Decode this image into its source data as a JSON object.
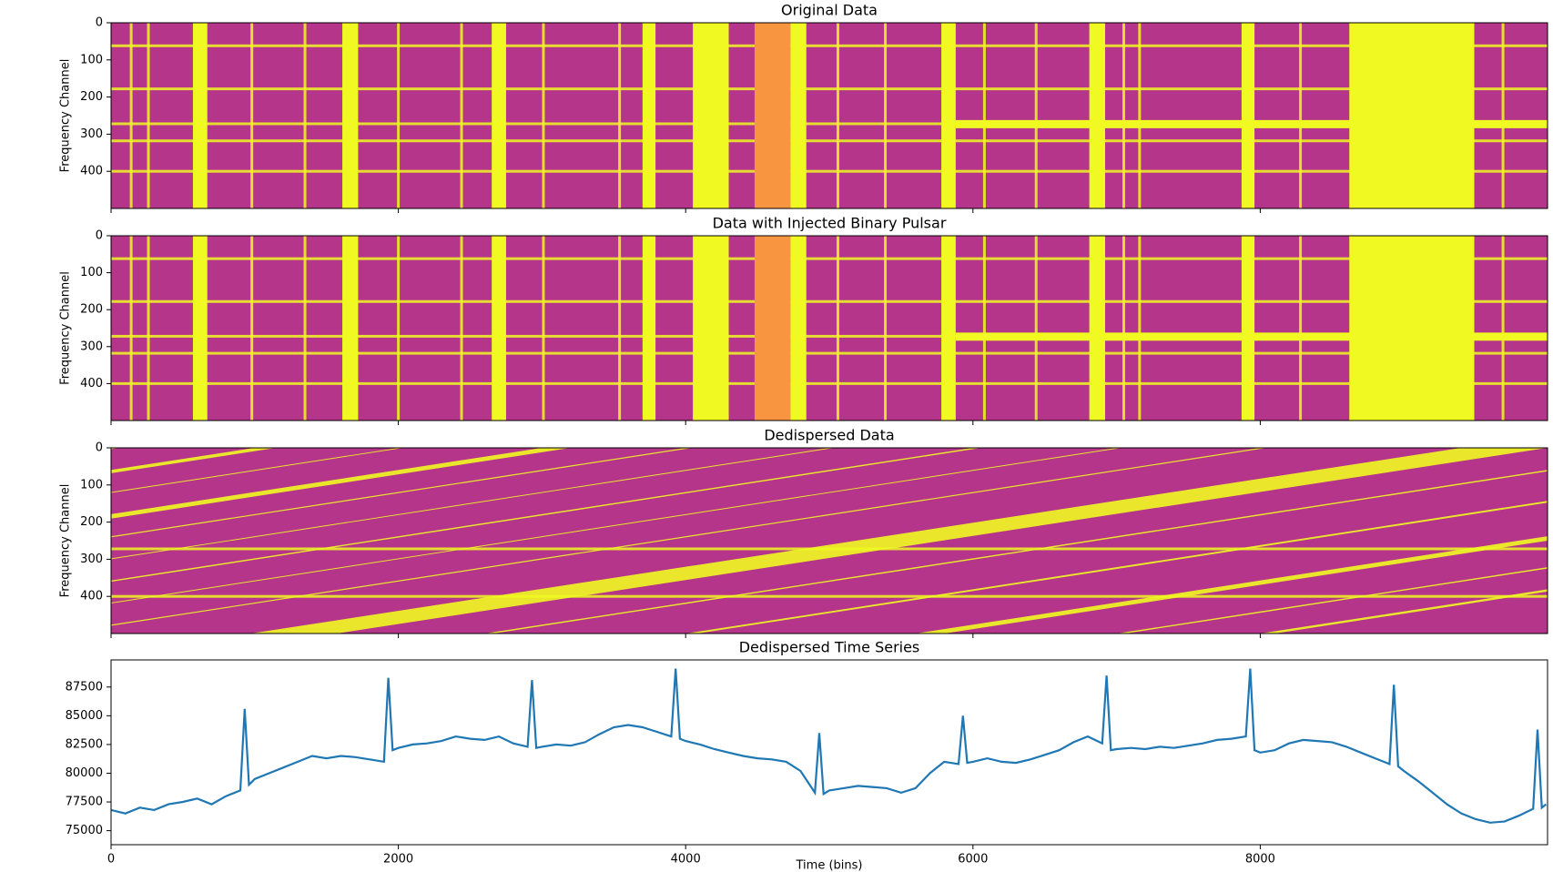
{
  "chart_data": [
    {
      "type": "heatmap",
      "title": "Original Data",
      "ylabel": "Frequency Channel",
      "xlim": [
        0,
        10000
      ],
      "ylim": [
        500,
        0
      ],
      "xticks": [
        0,
        2000,
        4000,
        6000,
        8000
      ],
      "yticks": [
        0,
        100,
        200,
        300,
        400
      ],
      "background": "#b5358a",
      "color": "#f0f921",
      "accent": "#f89540",
      "bands": [
        [
          570,
          670
        ],
        [
          1610,
          1720
        ],
        [
          2650,
          2750
        ],
        [
          3700,
          3790
        ],
        [
          4050,
          4300
        ],
        [
          4730,
          4840
        ],
        [
          5780,
          5880
        ],
        [
          6810,
          6920
        ],
        [
          7870,
          7960
        ],
        [
          8620,
          9490
        ]
      ],
      "accent_bands": [
        [
          4480,
          4730
        ]
      ],
      "lines_x": [
        140,
        260,
        980,
        1350,
        2000,
        2440,
        3010,
        3540,
        5060,
        5390,
        6080,
        6440,
        7050,
        7160,
        8280,
        9690
      ],
      "lines_y": [
        62,
        178,
        272,
        318,
        400
      ],
      "hbands": [
        [
          5880,
          10000,
          262,
          284
        ]
      ]
    },
    {
      "type": "heatmap",
      "title": "Data with Injected Binary Pulsar",
      "ylabel": "Frequency Channel",
      "xlim": [
        0,
        10000
      ],
      "ylim": [
        500,
        0
      ],
      "xticks": [
        0,
        2000,
        4000,
        6000,
        8000
      ],
      "yticks": [
        0,
        100,
        200,
        300,
        400
      ],
      "background": "#b5358a",
      "color": "#f0f921",
      "accent": "#f89540",
      "bands": [
        [
          570,
          670
        ],
        [
          1610,
          1720
        ],
        [
          2650,
          2750
        ],
        [
          3700,
          3790
        ],
        [
          4050,
          4300
        ],
        [
          4730,
          4840
        ],
        [
          5780,
          5880
        ],
        [
          6810,
          6920
        ],
        [
          7870,
          7960
        ],
        [
          8620,
          9490
        ]
      ],
      "accent_bands": [
        [
          4480,
          4730
        ]
      ],
      "lines_x": [
        140,
        260,
        980,
        1350,
        2000,
        2440,
        3010,
        3540,
        5060,
        5390,
        6080,
        6440,
        7050,
        7160,
        8280,
        9690
      ],
      "lines_y": [
        62,
        178,
        272,
        318,
        400
      ],
      "hbands": [
        [
          5880,
          10000,
          262,
          284
        ]
      ]
    },
    {
      "type": "sweep",
      "title": "Dedispersed Data",
      "ylabel": "Frequency Channel",
      "xlim": [
        0,
        10000
      ],
      "ylim": [
        500,
        0
      ],
      "xticks": [
        0,
        2000,
        4000,
        6000,
        8000
      ],
      "yticks": [
        0,
        100,
        200,
        300,
        400
      ],
      "background": "#b5358a",
      "color": "#f0f921",
      "sweeps": [
        [
          -8400,
          0,
          60
        ],
        [
          -7400,
          1000,
          150
        ],
        [
          -6400,
          2000,
          40
        ],
        [
          -5400,
          3000,
          200
        ],
        [
          -4400,
          4000,
          50
        ],
        [
          -3400,
          5000,
          40
        ],
        [
          -2400,
          6000,
          60
        ],
        [
          -1400,
          7000,
          40
        ],
        [
          -400,
          8000,
          50
        ],
        [
          970,
          9400,
          600
        ],
        [
          2600,
          11000,
          60
        ],
        [
          4000,
          12400,
          80
        ],
        [
          5600,
          14000,
          200
        ],
        [
          7000,
          15400,
          60
        ],
        [
          8000,
          16400,
          100
        ]
      ],
      "lines_y": [
        272,
        400
      ]
    },
    {
      "type": "line",
      "title": "Dedispersed Time Series",
      "xlabel": "Time (bins)",
      "xlim": [
        0,
        10000
      ],
      "ylim": [
        73780,
        89860
      ],
      "xticks": [
        0,
        2000,
        4000,
        6000,
        8000
      ],
      "yticks": [
        75000,
        77500,
        80000,
        82500,
        85000,
        87500
      ],
      "color": "#1f77b4",
      "x": [
        0,
        100,
        200,
        300,
        400,
        500,
        600,
        700,
        800,
        900,
        930,
        960,
        1000,
        1100,
        1200,
        1300,
        1400,
        1500,
        1600,
        1700,
        1800,
        1900,
        1930,
        1960,
        2000,
        2100,
        2200,
        2300,
        2400,
        2500,
        2600,
        2700,
        2800,
        2900,
        2930,
        2960,
        3000,
        3100,
        3200,
        3300,
        3400,
        3500,
        3600,
        3700,
        3800,
        3900,
        3930,
        3960,
        4000,
        4100,
        4200,
        4300,
        4400,
        4500,
        4600,
        4700,
        4800,
        4900,
        4930,
        4960,
        5000,
        5100,
        5200,
        5300,
        5400,
        5500,
        5600,
        5700,
        5800,
        5900,
        5930,
        5960,
        6000,
        6100,
        6200,
        6300,
        6400,
        6500,
        6600,
        6700,
        6800,
        6900,
        6930,
        6960,
        7000,
        7100,
        7200,
        7300,
        7400,
        7500,
        7600,
        7700,
        7800,
        7900,
        7930,
        7960,
        8000,
        8100,
        8200,
        8300,
        8400,
        8500,
        8600,
        8700,
        8800,
        8900,
        8930,
        8960,
        9000,
        9100,
        9200,
        9300,
        9400,
        9500,
        9600,
        9700,
        9800,
        9900,
        9930,
        9960,
        9990
      ],
      "values": [
        76800,
        76500,
        77000,
        76800,
        77300,
        77500,
        77800,
        77300,
        78000,
        78500,
        85600,
        79000,
        79500,
        80000,
        80500,
        81000,
        81500,
        81300,
        81500,
        81400,
        81200,
        81000,
        88300,
        82000,
        82200,
        82500,
        82600,
        82800,
        83200,
        83000,
        82900,
        83200,
        82600,
        82300,
        88100,
        82200,
        82300,
        82500,
        82400,
        82700,
        83400,
        84000,
        84200,
        84000,
        83600,
        83200,
        89100,
        83000,
        82800,
        82500,
        82100,
        81800,
        81500,
        81300,
        81200,
        81000,
        80200,
        78300,
        83500,
        78200,
        78500,
        78700,
        78900,
        78800,
        78700,
        78300,
        78700,
        80000,
        81000,
        80800,
        85000,
        80900,
        81000,
        81300,
        81000,
        80900,
        81200,
        81600,
        82000,
        82700,
        83200,
        82600,
        88500,
        82000,
        82100,
        82200,
        82100,
        82300,
        82200,
        82400,
        82600,
        82900,
        83000,
        83200,
        89100,
        82000,
        81800,
        82000,
        82600,
        82900,
        82800,
        82700,
        82300,
        81800,
        81300,
        80800,
        87700,
        80600,
        80200,
        79300,
        78300,
        77300,
        76500,
        76000,
        75700,
        75800,
        76300,
        76900,
        83800,
        77000,
        77300
      ]
    }
  ]
}
